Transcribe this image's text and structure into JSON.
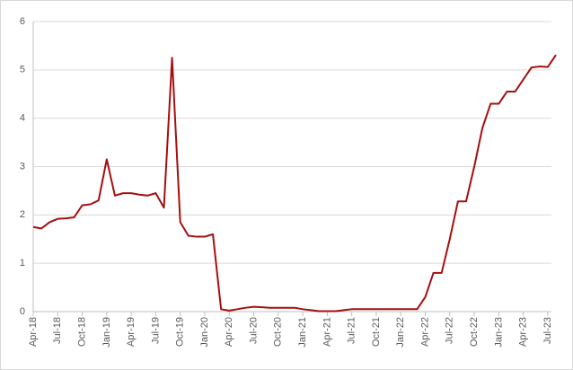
{
  "chart_data": {
    "type": "line",
    "categories": [
      "Apr-18",
      null,
      null,
      "Jul-18",
      null,
      null,
      "Oct-18",
      null,
      null,
      "Jan-19",
      null,
      null,
      "Apr-19",
      null,
      null,
      "Jul-19",
      null,
      null,
      "Oct-19",
      null,
      null,
      "Jan-20",
      null,
      null,
      "Apr-20",
      null,
      null,
      "Jul-20",
      null,
      null,
      "Oct-20",
      null,
      null,
      "Jan-21",
      null,
      null,
      "Apr-21",
      null,
      null,
      "Jul-21",
      null,
      null,
      "Oct-21",
      null,
      null,
      "Jan-22",
      null,
      null,
      "Apr-22",
      null,
      null,
      "Jul-22",
      null,
      null,
      "Oct-22",
      null,
      null,
      "Jan-23",
      null,
      null,
      "Apr-23",
      null,
      null,
      "Jul-23",
      null
    ],
    "series": [
      {
        "color": "#a50f0f",
        "values": [
          1.75,
          1.72,
          1.85,
          1.92,
          1.93,
          1.95,
          2.2,
          2.22,
          2.3,
          3.15,
          2.4,
          2.45,
          2.45,
          2.42,
          2.4,
          2.45,
          2.15,
          5.25,
          1.85,
          1.57,
          1.55,
          1.55,
          1.6,
          0.05,
          0.02,
          0.05,
          0.08,
          0.1,
          0.09,
          0.08,
          0.08,
          0.08,
          0.08,
          0.05,
          0.03,
          0.01,
          0.01,
          0.01,
          0.03,
          0.05,
          0.05,
          0.05,
          0.05,
          0.05,
          0.05,
          0.05,
          0.05,
          0.05,
          0.3,
          0.8,
          0.8,
          1.5,
          2.28,
          2.28,
          3.0,
          3.8,
          4.3,
          4.3,
          4.55,
          4.55,
          4.8,
          5.05,
          5.07,
          5.06,
          5.31
        ]
      }
    ],
    "ylim": [
      0,
      6
    ],
    "yticks": [
      0,
      1,
      2,
      3,
      4,
      5,
      6
    ],
    "grid": true
  }
}
